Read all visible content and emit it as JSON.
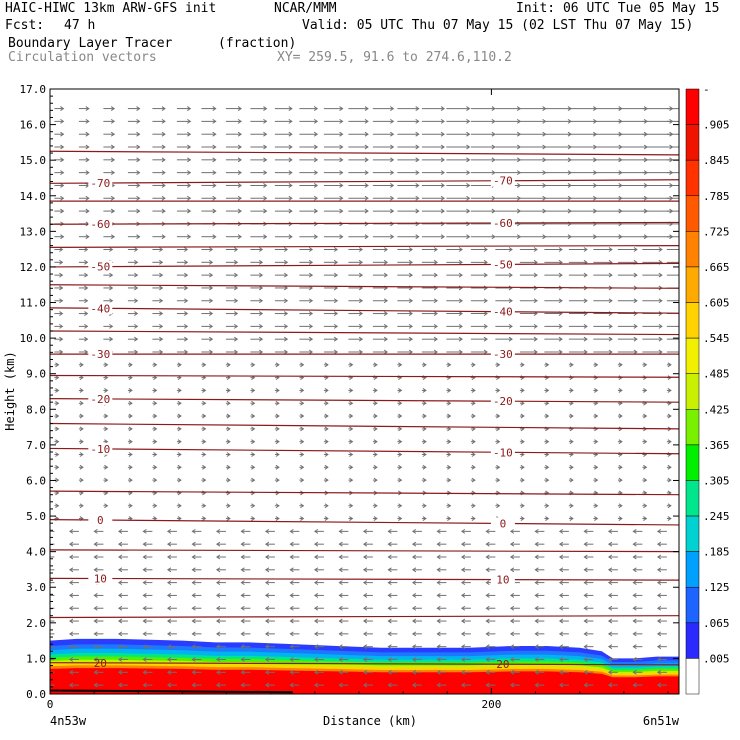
{
  "header": {
    "model": "HAIC-HIWC 13km ARW-GFS init",
    "org": "NCAR/MMM",
    "init": "Init: 06 UTC Tue 05 May 15",
    "fcst_label": "Fcst:",
    "fcst_value": "47 h",
    "valid": "Valid: 05 UTC Thu 07 May 15 (02 LST Thu 07 May 15)",
    "field": "Boundary Layer Tracer",
    "field_unit": "(fraction)",
    "overlay": "Circulation vectors",
    "xy": "XY= 259.5, 91.6 to 274.6,110.2"
  },
  "colors": {
    "contour": "#8b1a1a",
    "vector": "#707070",
    "colorbar": [
      "#ffffff",
      "#2a2aff",
      "#1e64ff",
      "#00a0ff",
      "#00d2d2",
      "#00e68c",
      "#00f000",
      "#78f000",
      "#c8f000",
      "#f0f000",
      "#ffd200",
      "#ffaa00",
      "#ff8200",
      "#ff5a00",
      "#ff3200",
      "#f01400",
      "#ff0000"
    ]
  },
  "chart_data": {
    "type": "contour",
    "title": "Boundary Layer Tracer (fraction)",
    "xlabel": "Distance (km)",
    "ylabel": "Height (km)",
    "xlim": [
      0,
      285
    ],
    "ylim": [
      0,
      17
    ],
    "x_ticks": [
      0,
      200
    ],
    "y_ticks": [
      "0.0",
      "1.0",
      "2.0",
      "3.0",
      "4.0",
      "5.0",
      "6.0",
      "7.0",
      "8.0",
      "9.0",
      "10.0",
      "11.0",
      "12.0",
      "13.0",
      "14.0",
      "15.0",
      "16.0",
      "17.0"
    ],
    "x_endpoints": [
      "4n53w",
      "6n51w"
    ],
    "colorbar_labels": [
      "-",
      ".905",
      ".845",
      ".785",
      ".725",
      ".665",
      ".605",
      ".545",
      ".485",
      ".425",
      ".365",
      ".305",
      ".245",
      ".185",
      ".125",
      ".065",
      ".005"
    ],
    "temperature_contours": [
      {
        "label": "20",
        "height_start": 0.88,
        "height_end": 0.82
      },
      {
        "label": "10",
        "height_start": 3.25,
        "height_end": 3.2
      },
      {
        "label": "0",
        "height_start": 4.9,
        "height_end": 4.75
      },
      {
        "label": "-10",
        "height_start": 6.9,
        "height_end": 6.75
      },
      {
        "label": "-20",
        "height_start": 8.3,
        "height_end": 8.2
      },
      {
        "label": "-30",
        "height_start": 9.55,
        "height_end": 9.55
      },
      {
        "label": "-40",
        "height_start": 10.85,
        "height_end": 10.7
      },
      {
        "label": "-50",
        "height_start": 12.0,
        "height_end": 12.1
      },
      {
        "label": "-60",
        "height_start": 13.2,
        "height_end": 13.25
      },
      {
        "label": "-70",
        "height_start": 14.35,
        "height_end": 14.45
      }
    ],
    "unlabeled_contours": [
      {
        "height_start": 2.15,
        "height_end": 2.2
      },
      {
        "height_start": 4.05,
        "height_end": 4.0
      },
      {
        "height_start": 5.7,
        "height_end": 5.6
      },
      {
        "height_start": 7.6,
        "height_end": 7.45
      },
      {
        "height_start": 8.95,
        "height_end": 8.9
      },
      {
        "height_start": 10.2,
        "height_end": 10.1
      },
      {
        "height_start": 11.5,
        "height_end": 11.4
      },
      {
        "height_start": 12.55,
        "height_end": 12.6
      },
      {
        "height_start": 13.85,
        "height_end": 13.85
      },
      {
        "height_start": 15.25,
        "height_end": 15.15
      }
    ],
    "boundary_layer": {
      "top_height": [
        1.5,
        1.55,
        1.55,
        1.5,
        1.45,
        1.45,
        1.4,
        1.35,
        1.3,
        1.3,
        1.3,
        1.35,
        1.35,
        1.3,
        1.2,
        1.0,
        1.0,
        1.05,
        1.05
      ],
      "x": [
        0,
        12,
        30,
        60,
        75,
        90,
        110,
        130,
        150,
        170,
        190,
        210,
        225,
        240,
        250,
        255,
        265,
        275,
        285
      ]
    }
  }
}
